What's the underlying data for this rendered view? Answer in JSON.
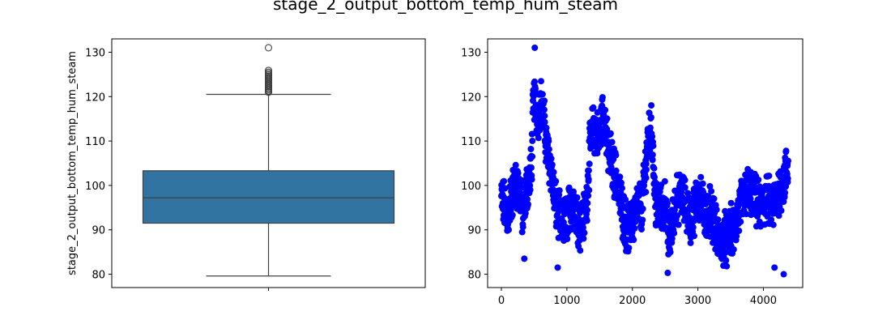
{
  "figure": {
    "title": "stage_2_output_bottom_temp_hum_steam"
  },
  "chart_data": [
    {
      "type": "box",
      "title": "",
      "xlabel": "",
      "ylabel": "stage_2_output_bottom_temp_hum_steam",
      "ylim": [
        77,
        133
      ],
      "yticks": [
        80,
        90,
        100,
        110,
        120,
        130
      ],
      "xticks": [
        ""
      ],
      "box": {
        "whisker_low": 79.6,
        "q1": 91.5,
        "median": 97.2,
        "q3": 103.3,
        "whisker_high": 120.5,
        "outliers": [
          121.0,
          121.3,
          121.6,
          121.9,
          122.2,
          122.5,
          122.8,
          123.1,
          123.4,
          123.7,
          124.0,
          124.3,
          124.6,
          124.9,
          125.2,
          125.5,
          125.9,
          131.0
        ]
      },
      "colors": {
        "box": "#3274a1",
        "lines": "#3f3f3f"
      }
    },
    {
      "type": "scatter",
      "title": "",
      "xlabel": "",
      "ylabel": "",
      "xlim": [
        -210,
        4600
      ],
      "ylim": [
        77,
        133
      ],
      "xticks": [
        0,
        1000,
        2000,
        3000,
        4000
      ],
      "yticks": [
        80,
        90,
        100,
        110,
        120,
        130
      ],
      "n_points": 4380,
      "color": "#0000ff",
      "profile_x": [
        0,
        60,
        100,
        130,
        180,
        250,
        300,
        330,
        350,
        380,
        420,
        460,
        480,
        500,
        520,
        560,
        600,
        640,
        680,
        720,
        760,
        790,
        820,
        860,
        900,
        950,
        1000,
        1050,
        1100,
        1150,
        1200,
        1260,
        1300,
        1350,
        1400,
        1450,
        1500,
        1540,
        1580,
        1620,
        1660,
        1700,
        1750,
        1800,
        1850,
        1900,
        1950,
        2000,
        2050,
        2100,
        2150,
        2200,
        2250,
        2300,
        2350,
        2400,
        2450,
        2500,
        2550,
        2600,
        2650,
        2700,
        2750,
        2800,
        2850,
        2900,
        2950,
        3000,
        3050,
        3100,
        3150,
        3200,
        3250,
        3300,
        3350,
        3400,
        3450,
        3500,
        3550,
        3600,
        3650,
        3700,
        3750,
        3800,
        3850,
        3900,
        3950,
        4000,
        4050,
        4100,
        4150,
        4200,
        4250,
        4300,
        4350,
        4380
      ],
      "profile_y": [
        97,
        95,
        93,
        96,
        99,
        100,
        97,
        92,
        96,
        99,
        101,
        104,
        115,
        120,
        118,
        116,
        119,
        116,
        110,
        106,
        104,
        100,
        96,
        94,
        92,
        91,
        93,
        95,
        96,
        94,
        91,
        93,
        96,
        108,
        113,
        112,
        110,
        116,
        115,
        108,
        107,
        104,
        102,
        98,
        94,
        91,
        90,
        92,
        94,
        96,
        95,
        104,
        113,
        112,
        96,
        95,
        94,
        96,
        88,
        90,
        96,
        97,
        98,
        96,
        94,
        92,
        95,
        98,
        96,
        94,
        93,
        95,
        92,
        88,
        87,
        88,
        89,
        90,
        89,
        93,
        95,
        97,
        99,
        98,
        97,
        96,
        95,
        96,
        97,
        96,
        95,
        97,
        100,
        100,
        103,
        104
      ]
    }
  ]
}
